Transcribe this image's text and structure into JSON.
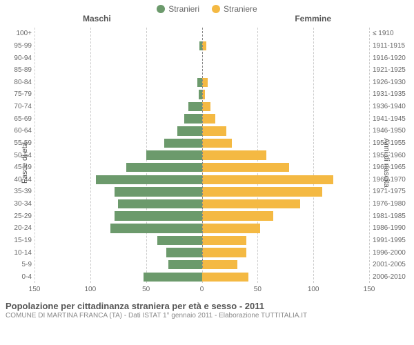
{
  "legend": {
    "male": {
      "label": "Stranieri",
      "color": "#6c9a6c"
    },
    "female": {
      "label": "Straniere",
      "color": "#f4b943"
    }
  },
  "column_titles": {
    "left": "Maschi",
    "right": "Femmine"
  },
  "axis_titles": {
    "left": "Fasce di età",
    "right": "Anni di nascita"
  },
  "chart": {
    "type": "population-pyramid",
    "max_value": 150,
    "x_ticks_left": [
      150,
      100,
      50,
      0
    ],
    "x_ticks_right": [
      0,
      50,
      100,
      150
    ],
    "grid_color": "#cccccc",
    "center_line_color": "#888888",
    "background_color": "#ffffff",
    "male_color": "#6c9a6c",
    "female_color": "#f4b943",
    "label_fontsize": 10,
    "rows": [
      {
        "age": "100+",
        "year": "≤ 1910",
        "male": 0,
        "female": 0
      },
      {
        "age": "95-99",
        "year": "1911-1915",
        "male": 2,
        "female": 4
      },
      {
        "age": "90-94",
        "year": "1916-1920",
        "male": 0,
        "female": 0
      },
      {
        "age": "85-89",
        "year": "1921-1925",
        "male": 0,
        "female": 0
      },
      {
        "age": "80-84",
        "year": "1926-1930",
        "male": 4,
        "female": 5
      },
      {
        "age": "75-79",
        "year": "1931-1935",
        "male": 3,
        "female": 3
      },
      {
        "age": "70-74",
        "year": "1936-1940",
        "male": 12,
        "female": 8
      },
      {
        "age": "65-69",
        "year": "1941-1945",
        "male": 16,
        "female": 12
      },
      {
        "age": "60-64",
        "year": "1946-1950",
        "male": 22,
        "female": 22
      },
      {
        "age": "55-59",
        "year": "1951-1955",
        "male": 34,
        "female": 27
      },
      {
        "age": "50-54",
        "year": "1956-1960",
        "male": 50,
        "female": 58
      },
      {
        "age": "45-49",
        "year": "1961-1965",
        "male": 68,
        "female": 78
      },
      {
        "age": "40-44",
        "year": "1966-1970",
        "male": 95,
        "female": 118
      },
      {
        "age": "35-39",
        "year": "1971-1975",
        "male": 78,
        "female": 108
      },
      {
        "age": "30-34",
        "year": "1976-1980",
        "male": 75,
        "female": 88
      },
      {
        "age": "25-29",
        "year": "1981-1985",
        "male": 78,
        "female": 64
      },
      {
        "age": "20-24",
        "year": "1986-1990",
        "male": 82,
        "female": 52
      },
      {
        "age": "15-19",
        "year": "1991-1995",
        "male": 40,
        "female": 40
      },
      {
        "age": "10-14",
        "year": "1996-2000",
        "male": 32,
        "female": 40
      },
      {
        "age": "5-9",
        "year": "2001-2005",
        "male": 30,
        "female": 32
      },
      {
        "age": "0-4",
        "year": "2006-2010",
        "male": 52,
        "female": 42
      }
    ]
  },
  "footer": {
    "title": "Popolazione per cittadinanza straniera per età e sesso - 2011",
    "subtitle": "COMUNE DI MARTINA FRANCA (TA) - Dati ISTAT 1° gennaio 2011 - Elaborazione TUTTITALIA.IT"
  }
}
